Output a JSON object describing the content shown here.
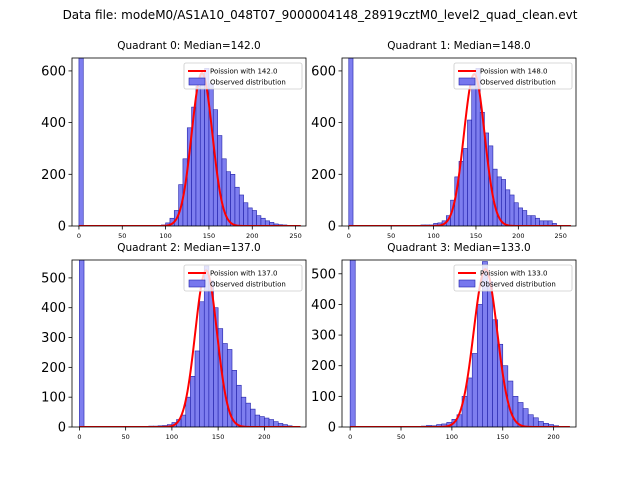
{
  "figure": {
    "suptitle": "Data file: modeM0/AS1A10_048T07_9000004148_28919cztM0_level2_quad_clean.evt"
  },
  "colors": {
    "bar_fill": "#7777ee",
    "bar_edge": "#2222aa",
    "line": "#ff0000",
    "axis": "#000000"
  },
  "chart_data": [
    {
      "type": "bar",
      "title": "Quadrant 0: Median=142.0",
      "median": 142.0,
      "xlim": [
        -8,
        262
      ],
      "ylim": [
        0,
        650
      ],
      "xticks": [
        0,
        50,
        100,
        150,
        200,
        250
      ],
      "yticks": [
        0,
        200,
        400,
        600
      ],
      "bin_width": 5,
      "legend": {
        "placement": "top-right",
        "line_label": "Poission with 142.0",
        "bar_label": "Observed distribution"
      },
      "bins": [
        [
          0,
          650
        ],
        [
          90,
          2
        ],
        [
          95,
          4
        ],
        [
          100,
          12
        ],
        [
          105,
          30
        ],
        [
          110,
          60
        ],
        [
          115,
          160
        ],
        [
          120,
          260
        ],
        [
          125,
          380
        ],
        [
          130,
          460
        ],
        [
          135,
          540
        ],
        [
          140,
          590
        ],
        [
          145,
          610
        ],
        [
          150,
          550
        ],
        [
          155,
          450
        ],
        [
          160,
          350
        ],
        [
          165,
          260
        ],
        [
          170,
          210
        ],
        [
          175,
          200
        ],
        [
          180,
          150
        ],
        [
          185,
          120
        ],
        [
          190,
          90
        ],
        [
          195,
          70
        ],
        [
          200,
          60
        ],
        [
          205,
          40
        ],
        [
          210,
          30
        ],
        [
          215,
          20
        ],
        [
          220,
          14
        ],
        [
          225,
          8
        ],
        [
          230,
          5
        ],
        [
          235,
          4
        ],
        [
          240,
          2
        ],
        [
          245,
          1
        ],
        [
          250,
          1
        ]
      ],
      "poisson": {
        "mean": 142.0,
        "peak": 592
      }
    },
    {
      "type": "bar",
      "title": "Quadrant 1: Median=148.0",
      "median": 148.0,
      "xlim": [
        -8,
        268
      ],
      "ylim": [
        0,
        650
      ],
      "xticks": [
        0,
        50,
        100,
        150,
        200,
        250
      ],
      "yticks": [
        0,
        200,
        400,
        600
      ],
      "bin_width": 5,
      "legend": {
        "placement": "top-right",
        "line_label": "Poission with 148.0",
        "bar_label": "Observed distribution"
      },
      "bins": [
        [
          0,
          650
        ],
        [
          85,
          4
        ],
        [
          90,
          4
        ],
        [
          95,
          4
        ],
        [
          100,
          10
        ],
        [
          105,
          12
        ],
        [
          110,
          20
        ],
        [
          115,
          40
        ],
        [
          120,
          100
        ],
        [
          125,
          190
        ],
        [
          130,
          250
        ],
        [
          135,
          300
        ],
        [
          140,
          410
        ],
        [
          145,
          570
        ],
        [
          150,
          610
        ],
        [
          155,
          440
        ],
        [
          160,
          360
        ],
        [
          165,
          310
        ],
        [
          170,
          220
        ],
        [
          175,
          190
        ],
        [
          180,
          180
        ],
        [
          185,
          140
        ],
        [
          190,
          120
        ],
        [
          195,
          90
        ],
        [
          200,
          70
        ],
        [
          205,
          60
        ],
        [
          210,
          40
        ],
        [
          215,
          40
        ],
        [
          220,
          30
        ],
        [
          225,
          20
        ],
        [
          230,
          20
        ],
        [
          235,
          20
        ],
        [
          240,
          10
        ]
      ],
      "poisson": {
        "mean": 148.0,
        "peak": 588
      }
    },
    {
      "type": "bar",
      "title": "Quadrant 2: Median=137.0",
      "median": 137.0,
      "xlim": [
        -8,
        245
      ],
      "ylim": [
        0,
        560
      ],
      "xticks": [
        0,
        50,
        100,
        150,
        200
      ],
      "yticks": [
        0,
        100,
        200,
        300,
        400,
        500
      ],
      "bin_width": 5,
      "legend": {
        "placement": "top-right",
        "line_label": "Poission with 137.0",
        "bar_label": "Observed distribution"
      },
      "bins": [
        [
          0,
          560
        ],
        [
          75,
          3
        ],
        [
          80,
          3
        ],
        [
          85,
          4
        ],
        [
          90,
          5
        ],
        [
          95,
          8
        ],
        [
          100,
          15
        ],
        [
          105,
          25
        ],
        [
          110,
          40
        ],
        [
          115,
          100
        ],
        [
          120,
          170
        ],
        [
          125,
          255
        ],
        [
          130,
          420
        ],
        [
          135,
          540
        ],
        [
          140,
          490
        ],
        [
          145,
          400
        ],
        [
          150,
          330
        ],
        [
          155,
          280
        ],
        [
          160,
          260
        ],
        [
          165,
          190
        ],
        [
          170,
          140
        ],
        [
          175,
          100
        ],
        [
          180,
          80
        ],
        [
          185,
          60
        ],
        [
          190,
          40
        ],
        [
          195,
          35
        ],
        [
          200,
          30
        ],
        [
          205,
          25
        ],
        [
          210,
          18
        ],
        [
          215,
          12
        ],
        [
          220,
          8
        ],
        [
          225,
          4
        ],
        [
          230,
          2
        ]
      ],
      "poisson": {
        "mean": 137.0,
        "peak": 525
      }
    },
    {
      "type": "bar",
      "title": "Quadrant 3: Median=133.0",
      "median": 133.0,
      "xlim": [
        -8,
        222
      ],
      "ylim": [
        0,
        545
      ],
      "xticks": [
        0,
        50,
        100,
        150,
        200
      ],
      "yticks": [
        0,
        100,
        200,
        300,
        400,
        500
      ],
      "bin_width": 5,
      "legend": {
        "placement": "top-right",
        "line_label": "Poission with 133.0",
        "bar_label": "Observed distribution"
      },
      "bins": [
        [
          0,
          545
        ],
        [
          70,
          3
        ],
        [
          75,
          5
        ],
        [
          80,
          4
        ],
        [
          85,
          8
        ],
        [
          90,
          10
        ],
        [
          95,
          15
        ],
        [
          100,
          25
        ],
        [
          105,
          40
        ],
        [
          110,
          100
        ],
        [
          115,
          160
        ],
        [
          120,
          240
        ],
        [
          125,
          400
        ],
        [
          130,
          540
        ],
        [
          135,
          475
        ],
        [
          140,
          350
        ],
        [
          145,
          270
        ],
        [
          150,
          200
        ],
        [
          155,
          150
        ],
        [
          160,
          100
        ],
        [
          165,
          80
        ],
        [
          170,
          60
        ],
        [
          175,
          40
        ],
        [
          180,
          30
        ],
        [
          185,
          18
        ],
        [
          190,
          12
        ],
        [
          195,
          8
        ],
        [
          200,
          4
        ]
      ],
      "poisson": {
        "mean": 133.0,
        "peak": 515
      }
    }
  ]
}
